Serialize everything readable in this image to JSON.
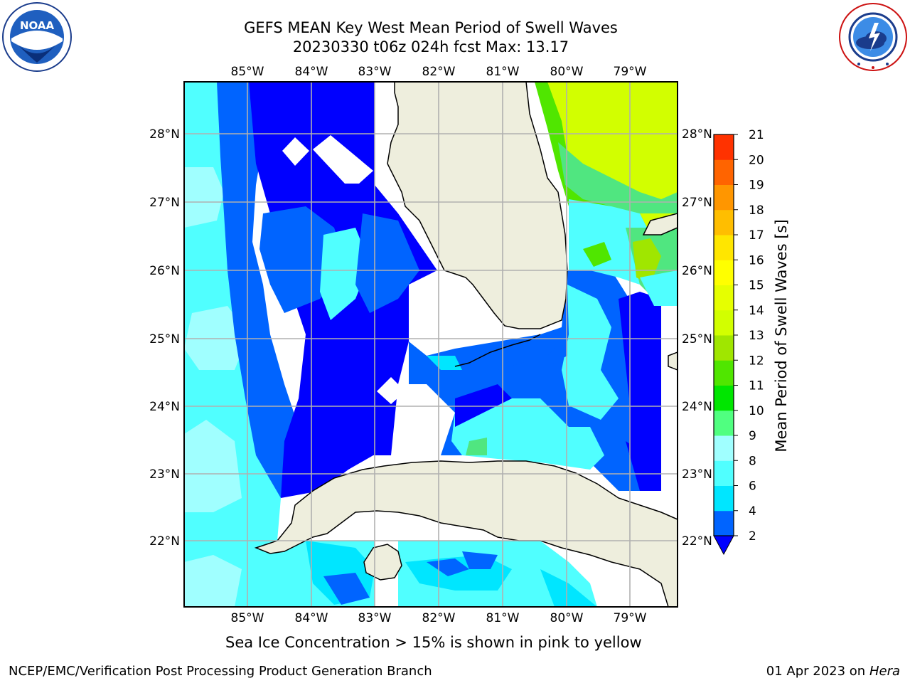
{
  "title": {
    "line1": "GEFS MEAN Key West Mean Period of Swell Waves",
    "line2": "20230330 t06z 024h fcst   Max: 13.17"
  },
  "logos": {
    "left": {
      "name": "noaa-logo",
      "text": "NOAA"
    },
    "right": {
      "name": "nws-logo",
      "text": "NATIONAL WEATHER SERVICE"
    }
  },
  "map": {
    "lon_labels": [
      "85°W",
      "84°W",
      "83°W",
      "82°W",
      "81°W",
      "80°W",
      "79°W"
    ],
    "lat_labels": [
      "28°N",
      "27°N",
      "26°N",
      "25°N",
      "24°N",
      "23°N",
      "22°N"
    ],
    "extent": {
      "lon": [
        -86.0,
        -78.25
      ],
      "lat": [
        21.0,
        28.75
      ]
    },
    "land_color": "#eeeedd",
    "grid_color": "#b0b0b0"
  },
  "colorbar": {
    "label": "Mean Period of Swell Waves [s]",
    "ticks": [
      "2",
      "4",
      "6",
      "8",
      "9",
      "10",
      "11",
      "12",
      "13",
      "14",
      "15",
      "16",
      "17",
      "18",
      "19",
      "20",
      "21"
    ],
    "colors": [
      "#0064ff",
      "#00e6ff",
      "#50ffff",
      "#a0ffff",
      "#50ff80",
      "#00e600",
      "#50e600",
      "#a0e600",
      "#d2ff00",
      "#e6ff00",
      "#ffff00",
      "#ffe600",
      "#ffbe00",
      "#ff9600",
      "#ff6400",
      "#ff3200"
    ],
    "extend_color": "#0000ff"
  },
  "caption": "Sea Ice Concentration > 15% is shown in pink to yellow",
  "footer": {
    "left": "NCEP/EMC/Verification Post Processing Product Generation Branch",
    "right_date": "01 Apr 2023 on ",
    "right_machine": "Hera"
  }
}
